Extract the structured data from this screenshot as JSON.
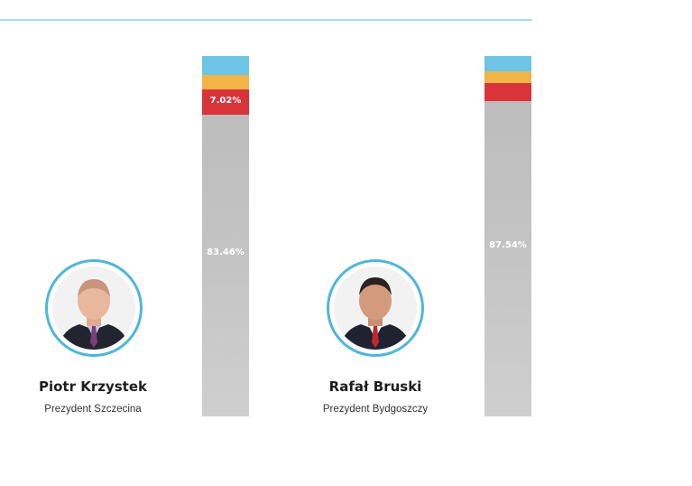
{
  "candidates": [
    {
      "name": "Piotr Krzystek",
      "role": "Prezydent Szczecina",
      "bar": {
        "segments": [
          {
            "color": "#6ec4e4",
            "share": 0.0531,
            "label": ""
          },
          {
            "color": "#f2b347",
            "share": 0.0401,
            "label": ""
          },
          {
            "color": "#d8343a",
            "share": 0.0702,
            "label": "7.02%"
          },
          {
            "color": "#c4c4c4",
            "share": 0.8346,
            "label": "83.46%"
          }
        ]
      },
      "photo": {
        "tie": "#7b3e7a",
        "shirt": "#c8c8e8"
      }
    },
    {
      "name": "Rafał Bruski",
      "role": "Prezydent Bydgoszczy",
      "bar": {
        "segments": [
          {
            "color": "#6ec4e4",
            "share": 0.0428,
            "label": ""
          },
          {
            "color": "#f2b347",
            "share": 0.0318,
            "label": ""
          },
          {
            "color": "#d8343a",
            "share": 0.05,
            "label": ""
          },
          {
            "color": "#c4c4c4",
            "share": 0.8754,
            "label": "87.54%"
          }
        ]
      },
      "photo": {
        "tie": "#c0272d",
        "shirt": "#ffffff"
      }
    }
  ]
}
